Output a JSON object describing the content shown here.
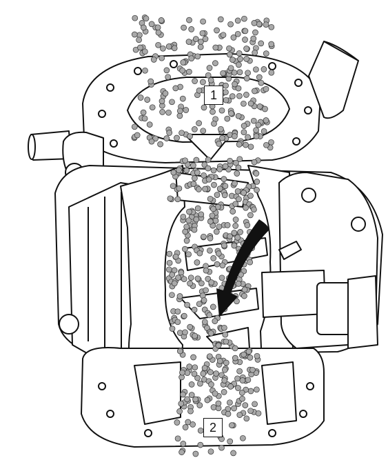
{
  "callouts": [
    {
      "id": "1",
      "label": "1"
    },
    {
      "id": "2",
      "label": "2"
    }
  ],
  "colors": {
    "outline": "#111111",
    "body": "#ffffff",
    "particle_fill": "#a9a9a9",
    "particle_stroke": "#333333",
    "arrow": "#111111"
  }
}
